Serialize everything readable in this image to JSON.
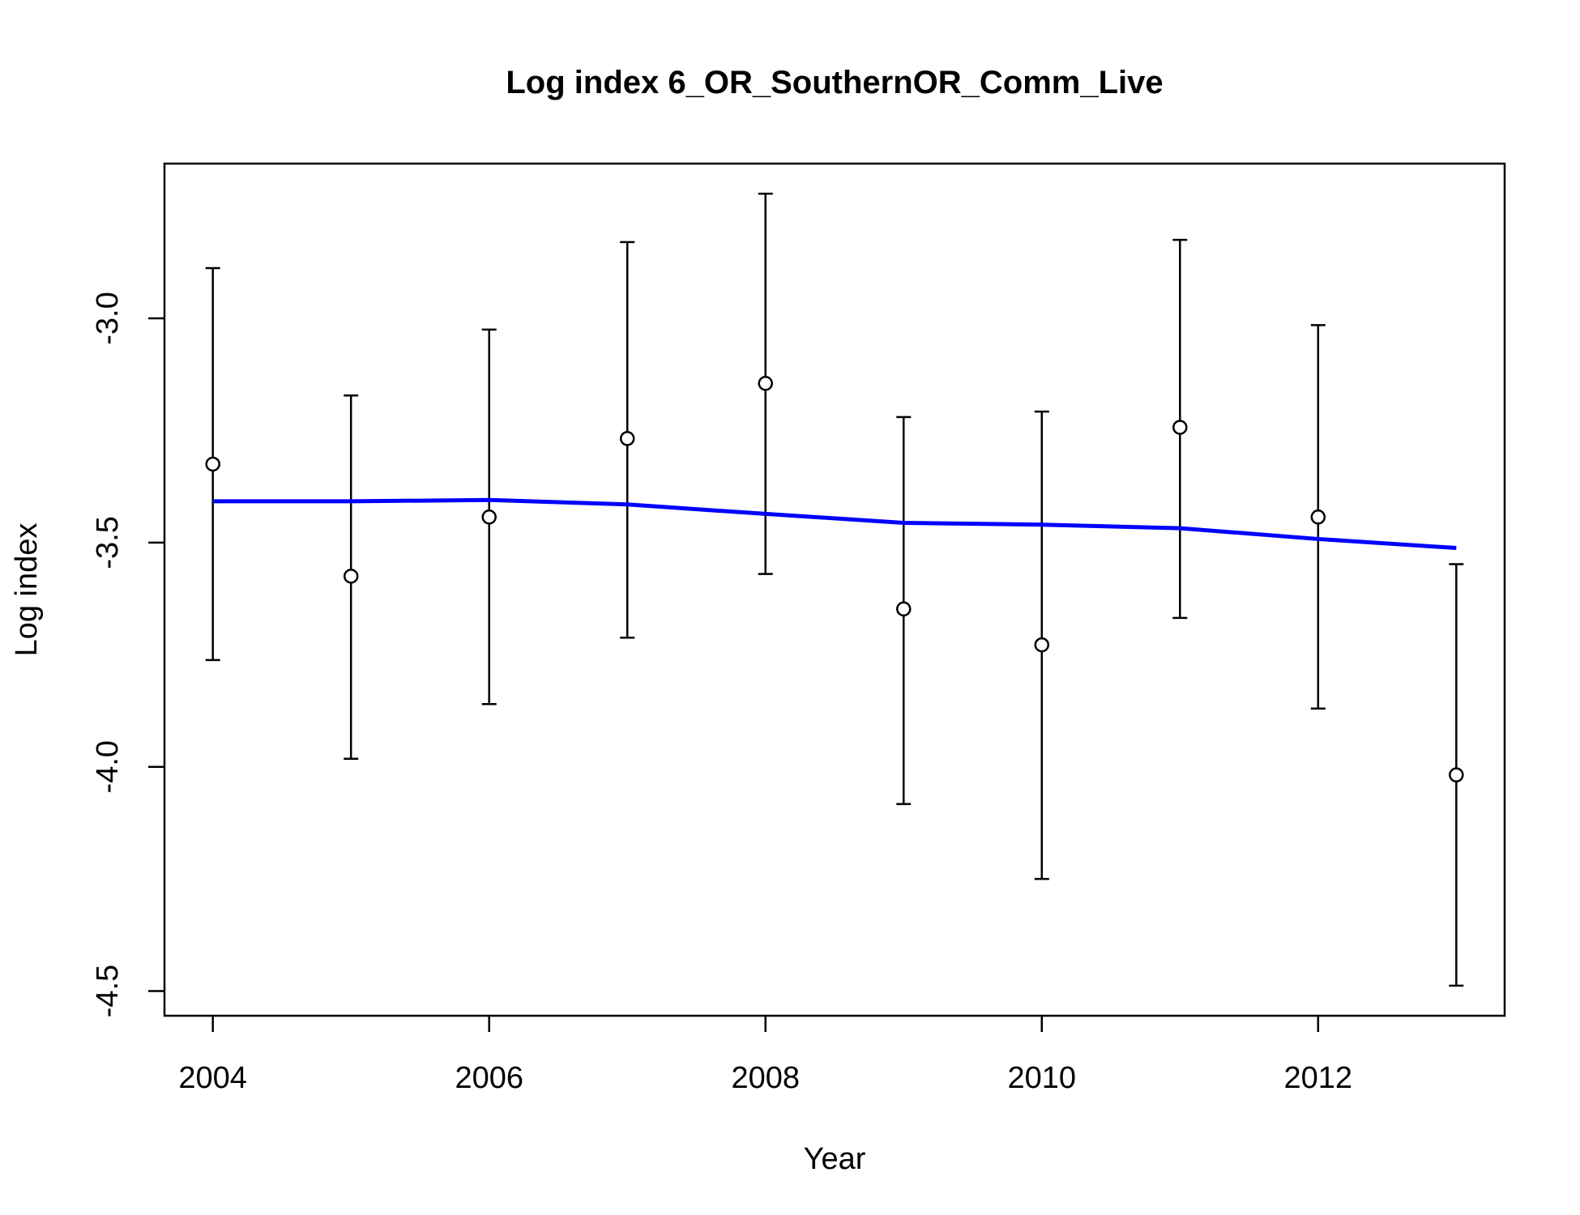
{
  "chart_data": {
    "type": "scatter",
    "title": "Log index 6_OR_SouthernOR_Comm_Live",
    "xlabel": "Year",
    "ylabel": "Log index",
    "xlim": [
      2003.65,
      2013.35
    ],
    "ylim": [
      -4.555,
      -2.655
    ],
    "x_ticks": [
      2004,
      2006,
      2008,
      2010,
      2012
    ],
    "y_ticks": [
      -3.0,
      -3.5,
      -4.0,
      -4.5
    ],
    "y_tick_labels": [
      "-3.0",
      "-3.5",
      "-4.0",
      "-4.5"
    ],
    "grid": false,
    "series": [
      {
        "points": [
          {
            "x": 2004,
            "y": -3.325,
            "lo": -3.762,
            "hi": -2.888
          },
          {
            "x": 2005,
            "y": -3.575,
            "lo": -3.982,
            "hi": -3.172
          },
          {
            "x": 2006,
            "y": -3.443,
            "lo": -3.86,
            "hi": -3.025
          },
          {
            "x": 2007,
            "y": -3.268,
            "lo": -3.712,
            "hi": -2.83
          },
          {
            "x": 2008,
            "y": -3.145,
            "lo": -3.57,
            "hi": -2.722
          },
          {
            "x": 2009,
            "y": -3.648,
            "lo": -4.083,
            "hi": -3.22
          },
          {
            "x": 2010,
            "y": -3.728,
            "lo": -4.25,
            "hi": -3.208
          },
          {
            "x": 2011,
            "y": -3.243,
            "lo": -3.668,
            "hi": -2.825
          },
          {
            "x": 2012,
            "y": -3.443,
            "lo": -3.87,
            "hi": -3.015
          },
          {
            "x": 2013,
            "y": -4.018,
            "lo": -4.488,
            "hi": -3.548
          }
        ]
      },
      {
        "type": "line",
        "color": "#0000ff",
        "x": [
          2004,
          2005,
          2006,
          2007,
          2008,
          2009,
          2010,
          2011,
          2012,
          2013
        ],
        "values": [
          -3.408,
          -3.408,
          -3.405,
          -3.415,
          -3.436,
          -3.456,
          -3.46,
          -3.468,
          -3.492,
          -3.512
        ]
      }
    ]
  }
}
